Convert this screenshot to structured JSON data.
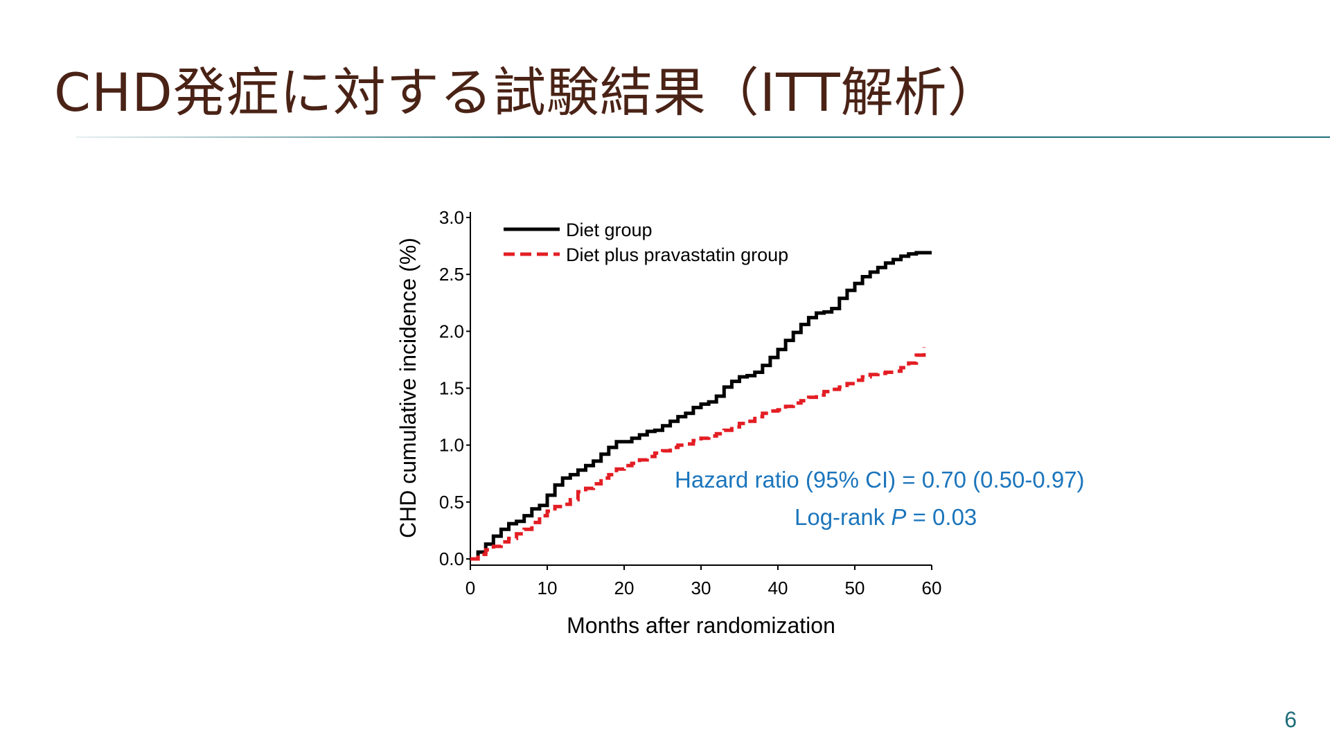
{
  "slide": {
    "title": "CHD発症に対する試験結果（ITT解析）",
    "page_number": "6"
  },
  "colors": {
    "title": "#4a2316",
    "accent": "#1f6e7a",
    "annotation": "#1b75bc",
    "diet_series": "#000000",
    "pravastatin_series": "#e31e24"
  },
  "chart_data": {
    "type": "line",
    "xlabel": "Months after randomization",
    "ylabel": "CHD cumulative incidence (%)",
    "xlim": [
      0,
      60
    ],
    "ylim": [
      0,
      3.0
    ],
    "xticks": [
      0,
      10,
      20,
      30,
      40,
      50,
      60
    ],
    "xtick_labels": [
      "0",
      "10",
      "20",
      "30",
      "40",
      "50",
      "60"
    ],
    "yticks": [
      0,
      0.5,
      1.0,
      1.5,
      2.0,
      2.5,
      3.0
    ],
    "ytick_labels": [
      "0.0",
      "0.5",
      "1.0",
      "1.5",
      "2.0",
      "2.5",
      "3.0"
    ],
    "legend_position": "top-left",
    "series": [
      {
        "name": "Diet group",
        "style": "solid",
        "color": "#000000",
        "x": [
          0,
          1,
          2,
          3,
          4,
          5,
          6,
          7,
          8,
          9,
          10,
          11,
          12,
          13,
          14,
          15,
          16,
          17,
          18,
          19,
          20,
          21,
          22,
          23,
          24,
          25,
          26,
          27,
          28,
          29,
          30,
          31,
          32,
          33,
          34,
          35,
          36,
          37,
          38,
          39,
          40,
          41,
          42,
          43,
          44,
          45,
          46,
          47,
          48,
          49,
          50,
          51,
          52,
          53,
          54,
          55,
          56,
          57,
          58,
          59,
          60
        ],
        "y": [
          0.0,
          0.06,
          0.13,
          0.2,
          0.26,
          0.31,
          0.33,
          0.38,
          0.44,
          0.47,
          0.56,
          0.65,
          0.71,
          0.74,
          0.78,
          0.82,
          0.86,
          0.92,
          0.98,
          1.03,
          1.03,
          1.06,
          1.09,
          1.12,
          1.13,
          1.17,
          1.21,
          1.25,
          1.28,
          1.33,
          1.36,
          1.38,
          1.43,
          1.51,
          1.56,
          1.6,
          1.61,
          1.64,
          1.7,
          1.77,
          1.84,
          1.92,
          1.99,
          2.06,
          2.12,
          2.16,
          2.17,
          2.2,
          2.29,
          2.36,
          2.42,
          2.48,
          2.52,
          2.56,
          2.6,
          2.63,
          2.66,
          2.68,
          2.69,
          2.69,
          2.69
        ]
      },
      {
        "name": "Diet plus pravastatin group",
        "style": "dashed",
        "color": "#e31e24",
        "x": [
          0,
          1,
          2,
          3,
          4,
          5,
          6,
          7,
          8,
          9,
          10,
          11,
          12,
          13,
          14,
          15,
          16,
          17,
          18,
          19,
          20,
          21,
          22,
          23,
          24,
          25,
          26,
          27,
          28,
          29,
          30,
          31,
          32,
          33,
          34,
          35,
          36,
          37,
          38,
          39,
          40,
          41,
          42,
          43,
          44,
          45,
          46,
          47,
          48,
          49,
          50,
          51,
          52,
          53,
          54,
          55,
          56,
          57,
          58,
          59
        ],
        "y": [
          0.0,
          0.04,
          0.08,
          0.11,
          0.15,
          0.18,
          0.22,
          0.26,
          0.32,
          0.38,
          0.42,
          0.46,
          0.48,
          0.52,
          0.59,
          0.62,
          0.66,
          0.71,
          0.74,
          0.79,
          0.82,
          0.84,
          0.87,
          0.9,
          0.93,
          0.95,
          0.98,
          1.0,
          1.01,
          1.04,
          1.06,
          1.08,
          1.1,
          1.13,
          1.16,
          1.19,
          1.21,
          1.25,
          1.28,
          1.3,
          1.31,
          1.34,
          1.37,
          1.39,
          1.42,
          1.44,
          1.47,
          1.49,
          1.51,
          1.54,
          1.57,
          1.6,
          1.62,
          1.63,
          1.64,
          1.65,
          1.68,
          1.72,
          1.79,
          1.86
        ]
      }
    ],
    "annotations": [
      {
        "id": "hazard",
        "text": "Hazard ratio (95% CI) = 0.70 (0.50-0.97)"
      },
      {
        "id": "logrank",
        "prefix": "Log-rank ",
        "italic": "P",
        "suffix": " = 0.03"
      }
    ]
  }
}
